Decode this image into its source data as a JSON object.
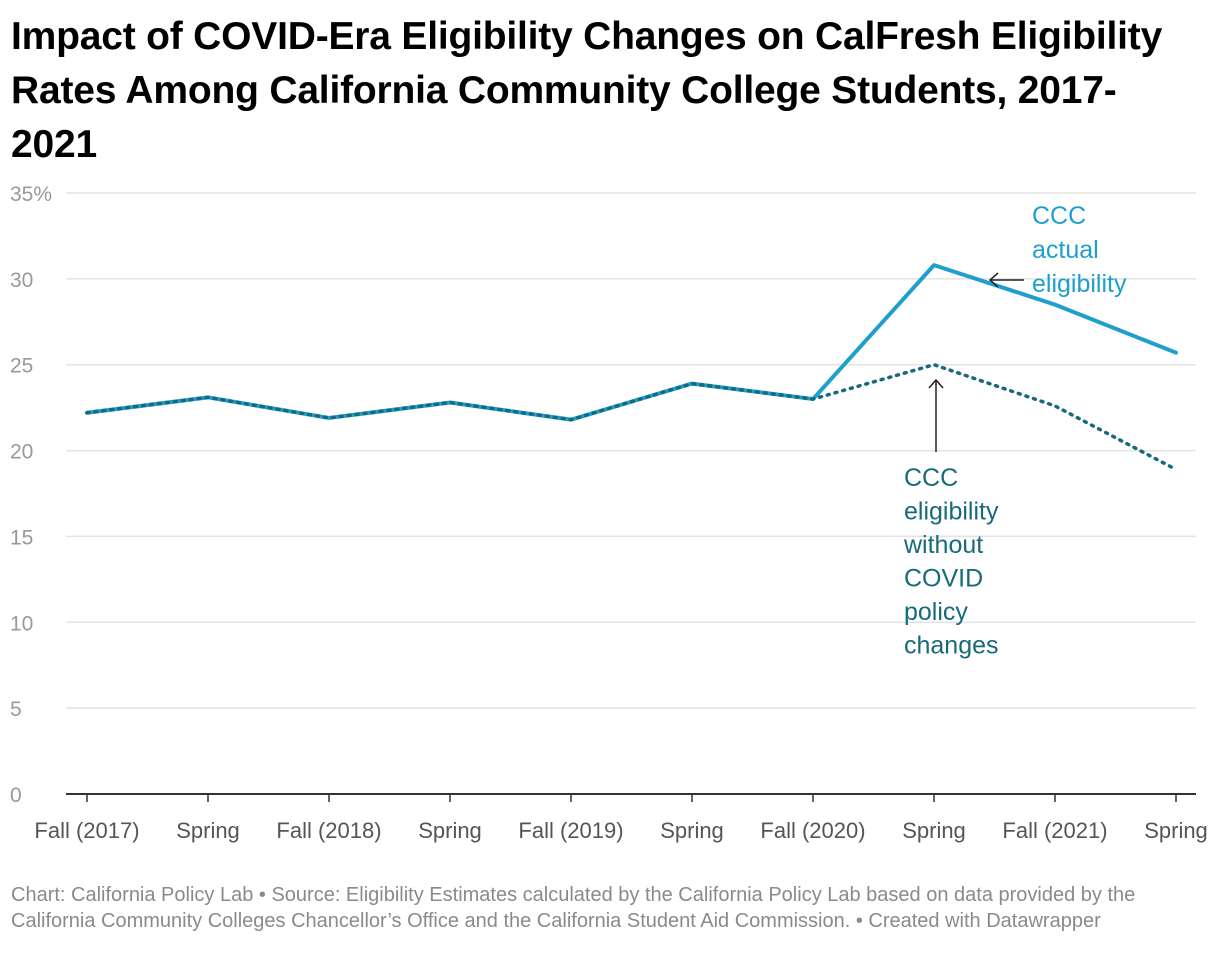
{
  "title": "Impact of COVID-Era Eligibility Changes on CalFresh Eligibility Rates Among California Community College Students, 2017-2021",
  "footer": "Chart: California Policy Lab • Source: Eligibility Estimates calculated by the California Policy Lab based on data provided by the California Community Colleges Chancellor’s Office and the California Student Aid Commission. • Created with Datawrapper",
  "colors": {
    "actual": "#1f9fcc",
    "without_covid": "#166a7b",
    "grid": "#e3e3e3",
    "axis": "#333333",
    "tick_text": "#999999"
  },
  "chart_data": {
    "type": "line",
    "categories": [
      "Fall (2017)",
      "Spring",
      "Fall (2018)",
      "Spring",
      "Fall (2019)",
      "Spring",
      "Fall (2020)",
      "Spring",
      "Fall (2021)",
      "Spring"
    ],
    "y_ticks": [
      "35%",
      "30",
      "25",
      "20",
      "15",
      "10",
      "5",
      "0"
    ],
    "ylim": [
      0,
      35
    ],
    "grid": true,
    "series": [
      {
        "name": "CCC actual eligibility",
        "label_lines": [
          "CCC",
          "actual",
          "eligibility"
        ],
        "color": "#1f9fcc",
        "style": "solid",
        "values": [
          22.2,
          23.1,
          21.9,
          22.8,
          21.8,
          23.9,
          23.0,
          30.8,
          28.5,
          25.7
        ]
      },
      {
        "name": "CCC eligibility without COVID policy changes",
        "label_lines": [
          "CCC",
          "eligibility",
          "without",
          "COVID",
          "policy",
          "changes"
        ],
        "color": "#166a7b",
        "style": "dotted",
        "values": [
          22.2,
          23.1,
          21.9,
          22.8,
          21.8,
          23.9,
          23.0,
          25.0,
          22.6,
          18.9
        ]
      }
    ]
  }
}
